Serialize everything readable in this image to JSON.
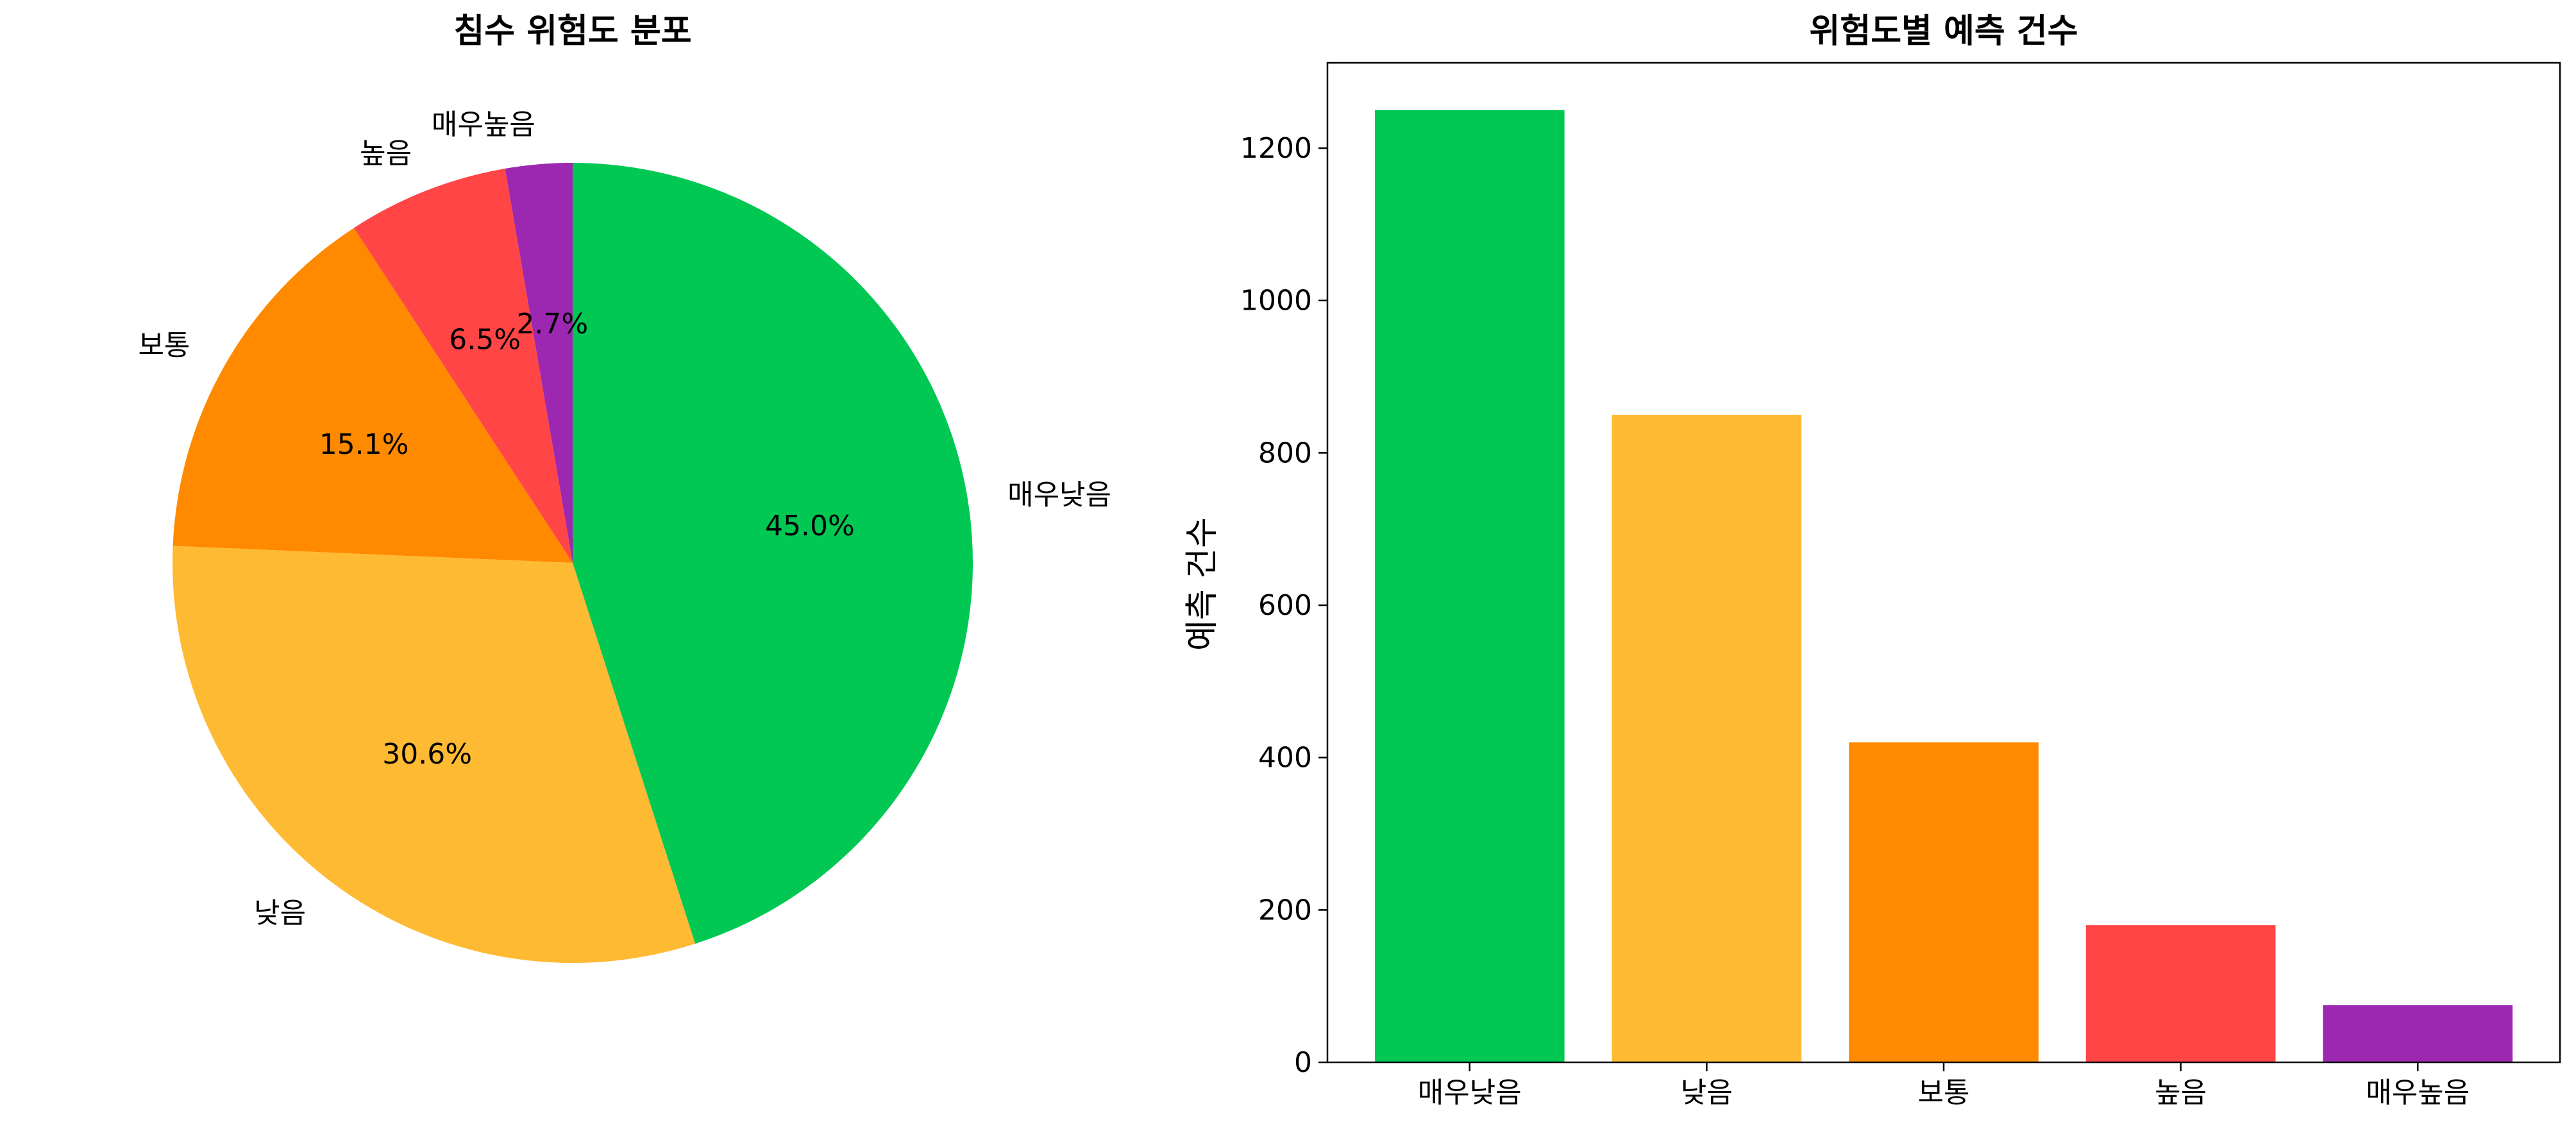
{
  "chart_data": [
    {
      "type": "pie",
      "title": "침수 위험도 분포",
      "labels": [
        "매우높음",
        "높음",
        "보통",
        "낮음",
        "매우낮음"
      ],
      "values": [
        2.7,
        6.5,
        15.1,
        30.6,
        45.0
      ],
      "value_labels": [
        "2.7%",
        "6.5%",
        "15.1%",
        "30.6%",
        "45.0%"
      ],
      "colors": [
        "#9c27b0",
        "#ff4545",
        "#ff8a00",
        "#ffba33",
        "#00c853"
      ]
    },
    {
      "type": "bar",
      "title": "위험도별 예측 건수",
      "categories": [
        "매우낮음",
        "낮음",
        "보통",
        "높음",
        "매우높음"
      ],
      "values": [
        1250,
        850,
        420,
        180,
        75
      ],
      "colors": [
        "#00c853",
        "#ffba33",
        "#ff8a00",
        "#ff4545",
        "#9c27b0"
      ],
      "xlabel": "",
      "ylabel": "예측 건수",
      "ylim": [
        0,
        1312
      ],
      "yticks": [
        0,
        200,
        400,
        600,
        800,
        1000,
        1200
      ],
      "grid": false
    }
  ]
}
